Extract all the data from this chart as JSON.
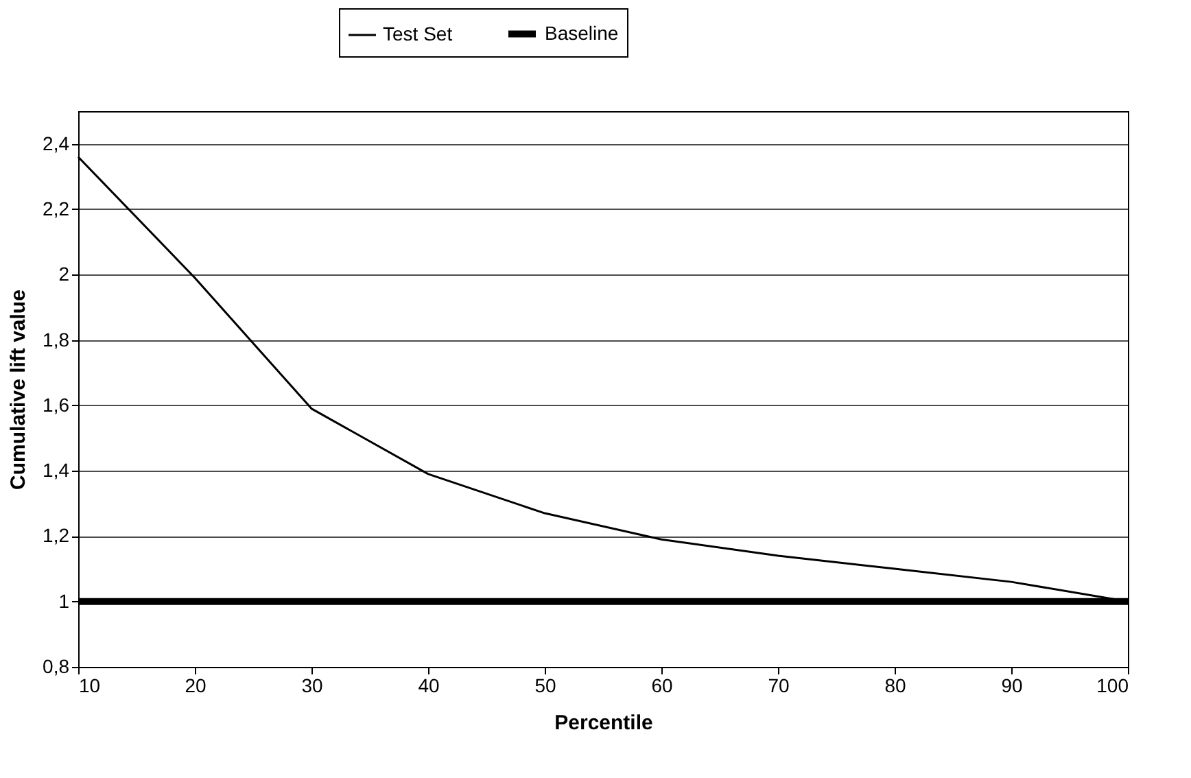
{
  "chart_data": {
    "type": "line",
    "xlabel": "Percentile",
    "ylabel": "Cumulative lift value",
    "x": [
      10,
      20,
      30,
      40,
      50,
      60,
      70,
      80,
      90,
      100
    ],
    "series": [
      {
        "name": "Test Set",
        "color": "#000000",
        "values": [
          2.36,
          1.99,
          1.59,
          1.39,
          1.27,
          1.19,
          1.14,
          1.1,
          1.06,
          1.0
        ]
      },
      {
        "name": "Baseline",
        "color": "#000000",
        "values": [
          1,
          1,
          1,
          1,
          1,
          1,
          1,
          1,
          1,
          1
        ]
      }
    ],
    "xlim": [
      10,
      100
    ],
    "xticks": [
      10,
      20,
      30,
      40,
      50,
      60,
      70,
      80,
      90,
      100
    ],
    "ylim": [
      0.8,
      2.5
    ],
    "yticks": [
      {
        "value": 0.8,
        "label": "0,8"
      },
      1,
      {
        "value": 1.2,
        "label": "1,2"
      },
      {
        "value": 1.4,
        "label": "1,4"
      },
      {
        "value": 1.6,
        "label": "1,6"
      },
      {
        "value": 1.8,
        "label": "1,8"
      },
      2,
      {
        "value": 2.2,
        "label": "2,2"
      },
      {
        "value": 2.4,
        "label": "2,4"
      }
    ],
    "grid": "y",
    "legend": "top",
    "marker": "none",
    "line_style": "solid"
  }
}
